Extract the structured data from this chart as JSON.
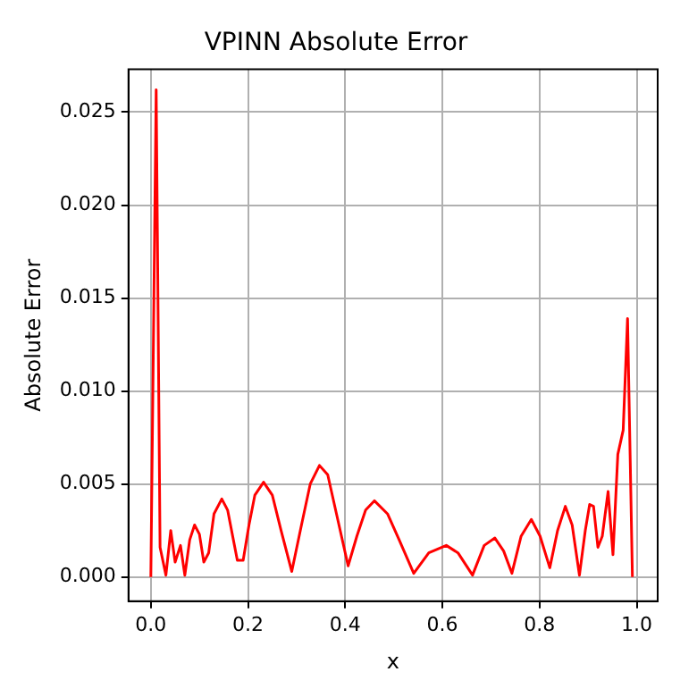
{
  "chart_data": {
    "type": "line",
    "title": "VPINN Absolute Error",
    "xlabel": "x",
    "ylabel": "Absolute Error",
    "xlim": [
      -0.046,
      1.043
    ],
    "xticks": [
      {
        "value": 0,
        "label": "0.0"
      },
      {
        "value": 0.2,
        "label": "0.2"
      },
      {
        "value": 0.4,
        "label": "0.4"
      },
      {
        "value": 0.6,
        "label": "0.6"
      },
      {
        "value": 0.8,
        "label": "0.8"
      },
      {
        "value": 1,
        "label": "1.0"
      }
    ],
    "ylim": [
      -0.0013,
      0.0273
    ],
    "yticks": [
      {
        "value": 0,
        "label": "0.000"
      },
      {
        "value": 0.005,
        "label": "0.005"
      },
      {
        "value": 0.01,
        "label": "0.010"
      },
      {
        "value": 0.015,
        "label": "0.015"
      },
      {
        "value": 0.02,
        "label": "0.020"
      },
      {
        "value": 0.025,
        "label": "0.025"
      }
    ],
    "grid": true,
    "marker": "none",
    "line_style": "solid",
    "x": [
      0,
      0.011,
      0.019,
      0.031,
      0.041,
      0.05,
      0.061,
      0.07,
      0.08,
      0.09,
      0.1,
      0.109,
      0.119,
      0.13,
      0.146,
      0.158,
      0.178,
      0.19,
      0.202,
      0.214,
      0.232,
      0.25,
      0.268,
      0.29,
      0.31,
      0.328,
      0.347,
      0.364,
      0.382,
      0.406,
      0.424,
      0.442,
      0.46,
      0.487,
      0.511,
      0.541,
      0.572,
      0.608,
      0.632,
      0.662,
      0.686,
      0.708,
      0.726,
      0.743,
      0.762,
      0.783,
      0.801,
      0.821,
      0.837,
      0.853,
      0.867,
      0.882,
      0.894,
      0.903,
      0.911,
      0.92,
      0.929,
      0.941,
      0.951,
      0.961,
      0.972,
      0.981,
      0.991
    ],
    "series": [
      {
        "color": "#ff0000",
        "values": [
          0,
          0.0262,
          0.0016,
          0.0001,
          0.0025,
          0.0008,
          0.0017,
          0.0001,
          0.002,
          0.0028,
          0.0023,
          0.0008,
          0.0013,
          0.0034,
          0.0042,
          0.0036,
          0.0009,
          0.0009,
          0.0028,
          0.0044,
          0.0051,
          0.0044,
          0.0025,
          0.0003,
          0.0028,
          0.005,
          0.006,
          0.0055,
          0.0034,
          0.0006,
          0.0022,
          0.0036,
          0.0041,
          0.0034,
          0.002,
          0.0002,
          0.0013,
          0.0017,
          0.0013,
          0.0001,
          0.0017,
          0.0021,
          0.0014,
          0.0002,
          0.0022,
          0.0031,
          0.0022,
          0.0005,
          0.0025,
          0.0038,
          0.0028,
          0.0001,
          0.0025,
          0.0039,
          0.0038,
          0.0016,
          0.0022,
          0.0046,
          0.0012,
          0.0066,
          0.0079,
          0.0139,
          0
        ]
      }
    ]
  }
}
